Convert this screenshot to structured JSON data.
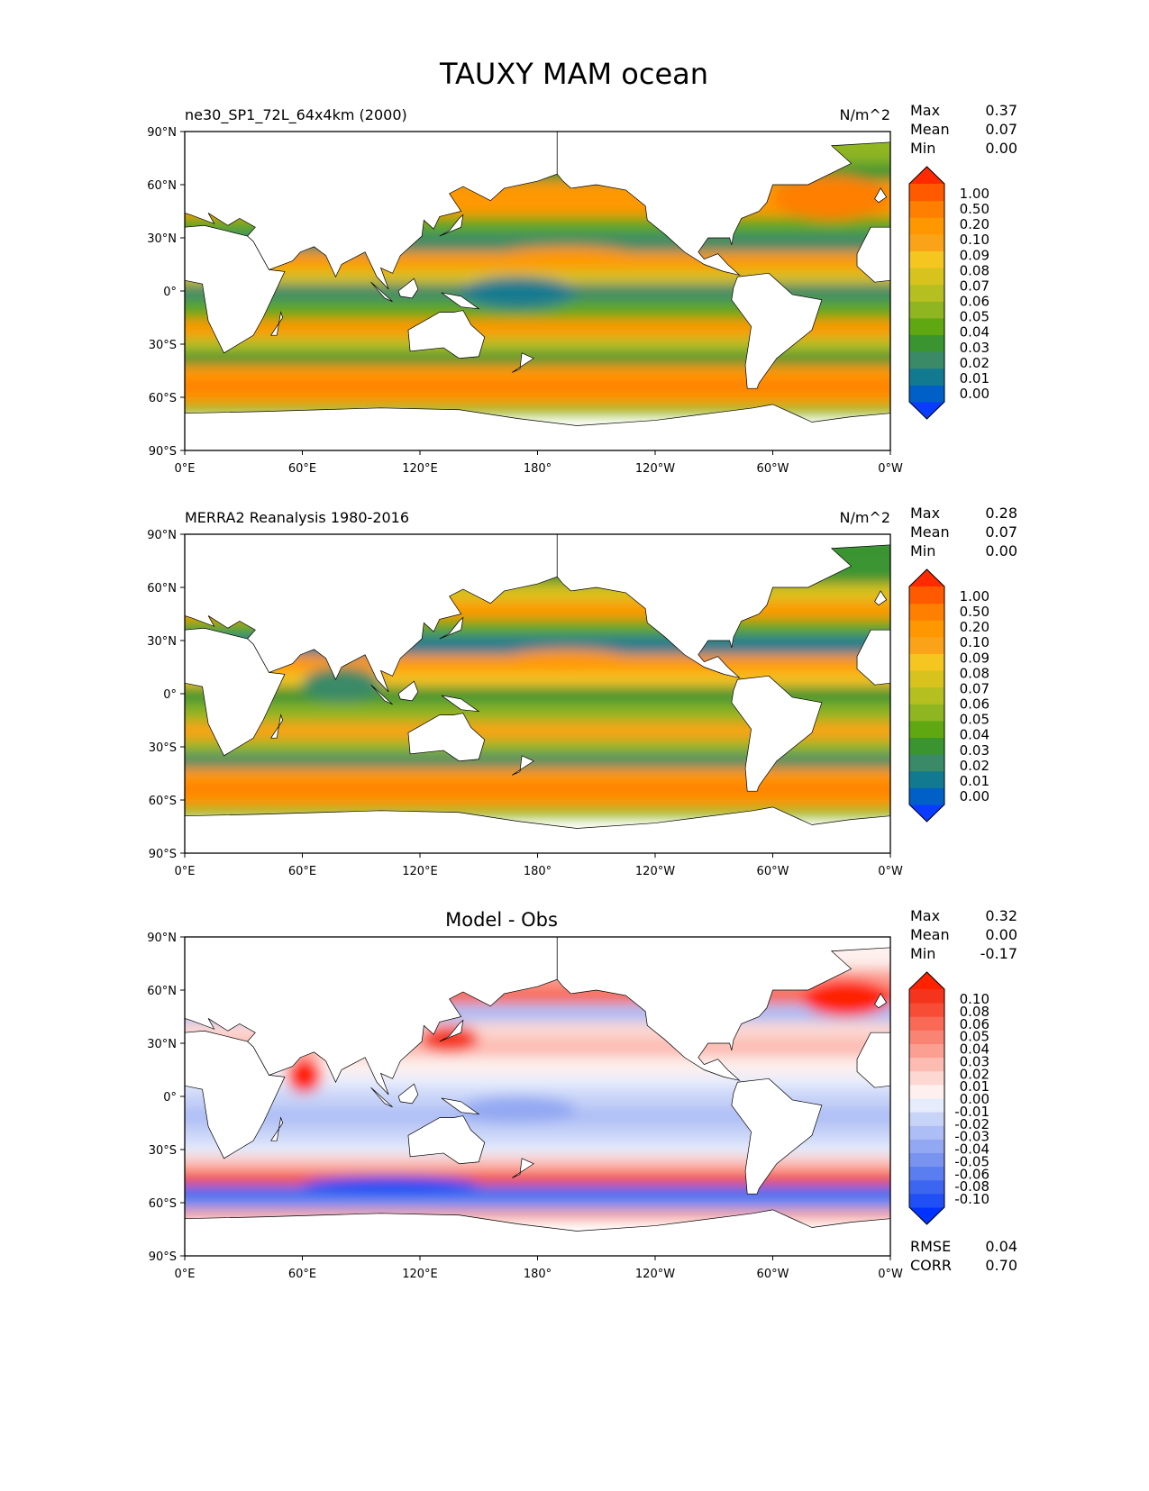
{
  "title": "TAUXY MAM ocean",
  "chart_data": [
    {
      "type": "heatmap",
      "left_title": "ne30_SP1_72L_64x4km (2000)",
      "units": "N/m^2",
      "stats": {
        "max_label": "Max",
        "max": "0.37",
        "mean_label": "Mean",
        "mean": "0.07",
        "min_label": "Min",
        "min": "0.00"
      },
      "colormap": "wind",
      "levels": [
        0,
        0.01,
        0.02,
        0.03,
        0.04,
        0.05,
        0.06,
        0.07,
        0.08,
        0.09,
        0.1,
        0.2,
        0.5,
        1.0
      ],
      "level_labels": [
        "0.00",
        "0.01",
        "0.02",
        "0.03",
        "0.04",
        "0.05",
        "0.06",
        "0.07",
        "0.08",
        "0.09",
        "0.10",
        "0.20",
        "0.50",
        "1.00"
      ],
      "zonal_profile": [
        [
          80,
          0.05
        ],
        [
          72,
          0.035
        ],
        [
          62,
          0.12
        ],
        [
          52,
          0.15
        ],
        [
          42,
          0.04
        ],
        [
          33,
          0.02
        ],
        [
          22,
          0.12
        ],
        [
          12,
          0.07
        ],
        [
          4,
          0.02
        ],
        [
          -6,
          0.045
        ],
        [
          -16,
          0.12
        ],
        [
          -26,
          0.06
        ],
        [
          -34,
          0.03
        ],
        [
          -42,
          0.15
        ],
        [
          -50,
          0.25
        ],
        [
          -58,
          0.15
        ],
        [
          -64,
          0.05
        ]
      ],
      "features": [
        [
          140,
          200,
          -10,
          8,
          0.01
        ],
        [
          300,
          360,
          40,
          65,
          0.2
        ],
        [
          160,
          230,
          15,
          25,
          0.15
        ]
      ]
    },
    {
      "type": "heatmap",
      "left_title": "MERRA2 Reanalysis 1980-2016",
      "units": "N/m^2",
      "stats": {
        "max_label": "Max",
        "max": "0.28",
        "mean_label": "Mean",
        "mean": "0.07",
        "min_label": "Min",
        "min": "0.00"
      },
      "colormap": "wind",
      "levels": [
        0,
        0.01,
        0.02,
        0.03,
        0.04,
        0.05,
        0.06,
        0.07,
        0.08,
        0.09,
        0.1,
        0.2,
        0.5,
        1.0
      ],
      "level_labels": [
        "0.00",
        "0.01",
        "0.02",
        "0.03",
        "0.04",
        "0.05",
        "0.06",
        "0.07",
        "0.08",
        "0.09",
        "0.10",
        "0.20",
        "0.50",
        "1.00"
      ],
      "zonal_profile": [
        [
          80,
          0.03
        ],
        [
          72,
          0.03
        ],
        [
          62,
          0.07
        ],
        [
          52,
          0.1
        ],
        [
          42,
          0.04
        ],
        [
          33,
          0.015
        ],
        [
          22,
          0.1
        ],
        [
          12,
          0.08
        ],
        [
          4,
          0.03
        ],
        [
          -6,
          0.05
        ],
        [
          -16,
          0.09
        ],
        [
          -26,
          0.05
        ],
        [
          -34,
          0.025
        ],
        [
          -42,
          0.15
        ],
        [
          -50,
          0.25
        ],
        [
          -58,
          0.15
        ],
        [
          -64,
          0.05
        ]
      ],
      "features": [
        [
          60,
          100,
          -5,
          15,
          0.02
        ],
        [
          160,
          230,
          12,
          25,
          0.15
        ]
      ]
    },
    {
      "type": "heatmap",
      "left_title": "",
      "center_title": "Model - Obs",
      "units": "",
      "stats": {
        "max_label": "Max",
        "max": "0.32",
        "mean_label": "Mean",
        "mean": "0.00",
        "min_label": "Min",
        "min": "-0.17"
      },
      "extra_stats": {
        "rmse_label": "RMSE",
        "rmse": "0.04",
        "corr_label": "CORR",
        "corr": "0.70"
      },
      "colormap": "diverging",
      "levels": [
        -0.1,
        -0.08,
        -0.06,
        -0.05,
        -0.04,
        -0.03,
        -0.02,
        -0.01,
        0.0,
        0.01,
        0.02,
        0.03,
        0.04,
        0.05,
        0.06,
        0.08,
        0.1
      ],
      "level_labels": [
        "-0.10",
        "-0.08",
        "-0.06",
        "-0.05",
        "-0.04",
        "-0.03",
        "-0.02",
        "-0.01",
        "0.00",
        "0.01",
        "0.02",
        "0.03",
        "0.04",
        "0.05",
        "0.06",
        "0.08",
        "0.10"
      ],
      "zonal_profile": [
        [
          80,
          0.0
        ],
        [
          72,
          0.03
        ],
        [
          62,
          0.05
        ],
        [
          52,
          -0.03
        ],
        [
          42,
          0.01
        ],
        [
          33,
          0.02
        ],
        [
          22,
          0.0
        ],
        [
          12,
          -0.01
        ],
        [
          4,
          -0.02
        ],
        [
          -6,
          -0.03
        ],
        [
          -16,
          -0.02
        ],
        [
          -26,
          -0.01
        ],
        [
          -34,
          0.02
        ],
        [
          -42,
          0.06
        ],
        [
          -50,
          -0.08
        ],
        [
          -58,
          -0.05
        ],
        [
          -64,
          0.03
        ]
      ],
      "features": [
        [
          315,
          360,
          45,
          66,
          0.12
        ],
        [
          52,
          70,
          2,
          22,
          0.12
        ],
        [
          120,
          150,
          25,
          40,
          0.08
        ],
        [
          140,
          200,
          -15,
          0,
          -0.04
        ],
        [
          60,
          150,
          -55,
          -45,
          -0.1
        ]
      ]
    }
  ],
  "colormaps": {
    "wind": [
      "#0a3cff",
      "#0060c8",
      "#127a90",
      "#3a8a68",
      "#3a9430",
      "#5fa812",
      "#8fb520",
      "#b5bf20",
      "#d8c21e",
      "#f5c520",
      "#fba318",
      "#ff9800",
      "#ff7f00",
      "#ff5a00",
      "#ff2a00"
    ],
    "diverging": [
      "#0033ff",
      "#1f4ff5",
      "#3c66f0",
      "#5a7df0",
      "#7893f0",
      "#93a8f2",
      "#adbdf5",
      "#c8d3f8",
      "#e6ecfc",
      "#fdf0ee",
      "#fdd8d2",
      "#fcbcb2",
      "#fb9f92",
      "#fa8474",
      "#f86a56",
      "#f74d36",
      "#f5341e",
      "#ff2200"
    ]
  },
  "axes": {
    "lat_ticks": [
      "90°N",
      "60°N",
      "30°N",
      "0°",
      "30°S",
      "60°S",
      "90°S"
    ],
    "lon_ticks": [
      "0°E",
      "60°E",
      "120°E",
      "180°",
      "120°W",
      "60°W",
      "0°W"
    ]
  }
}
